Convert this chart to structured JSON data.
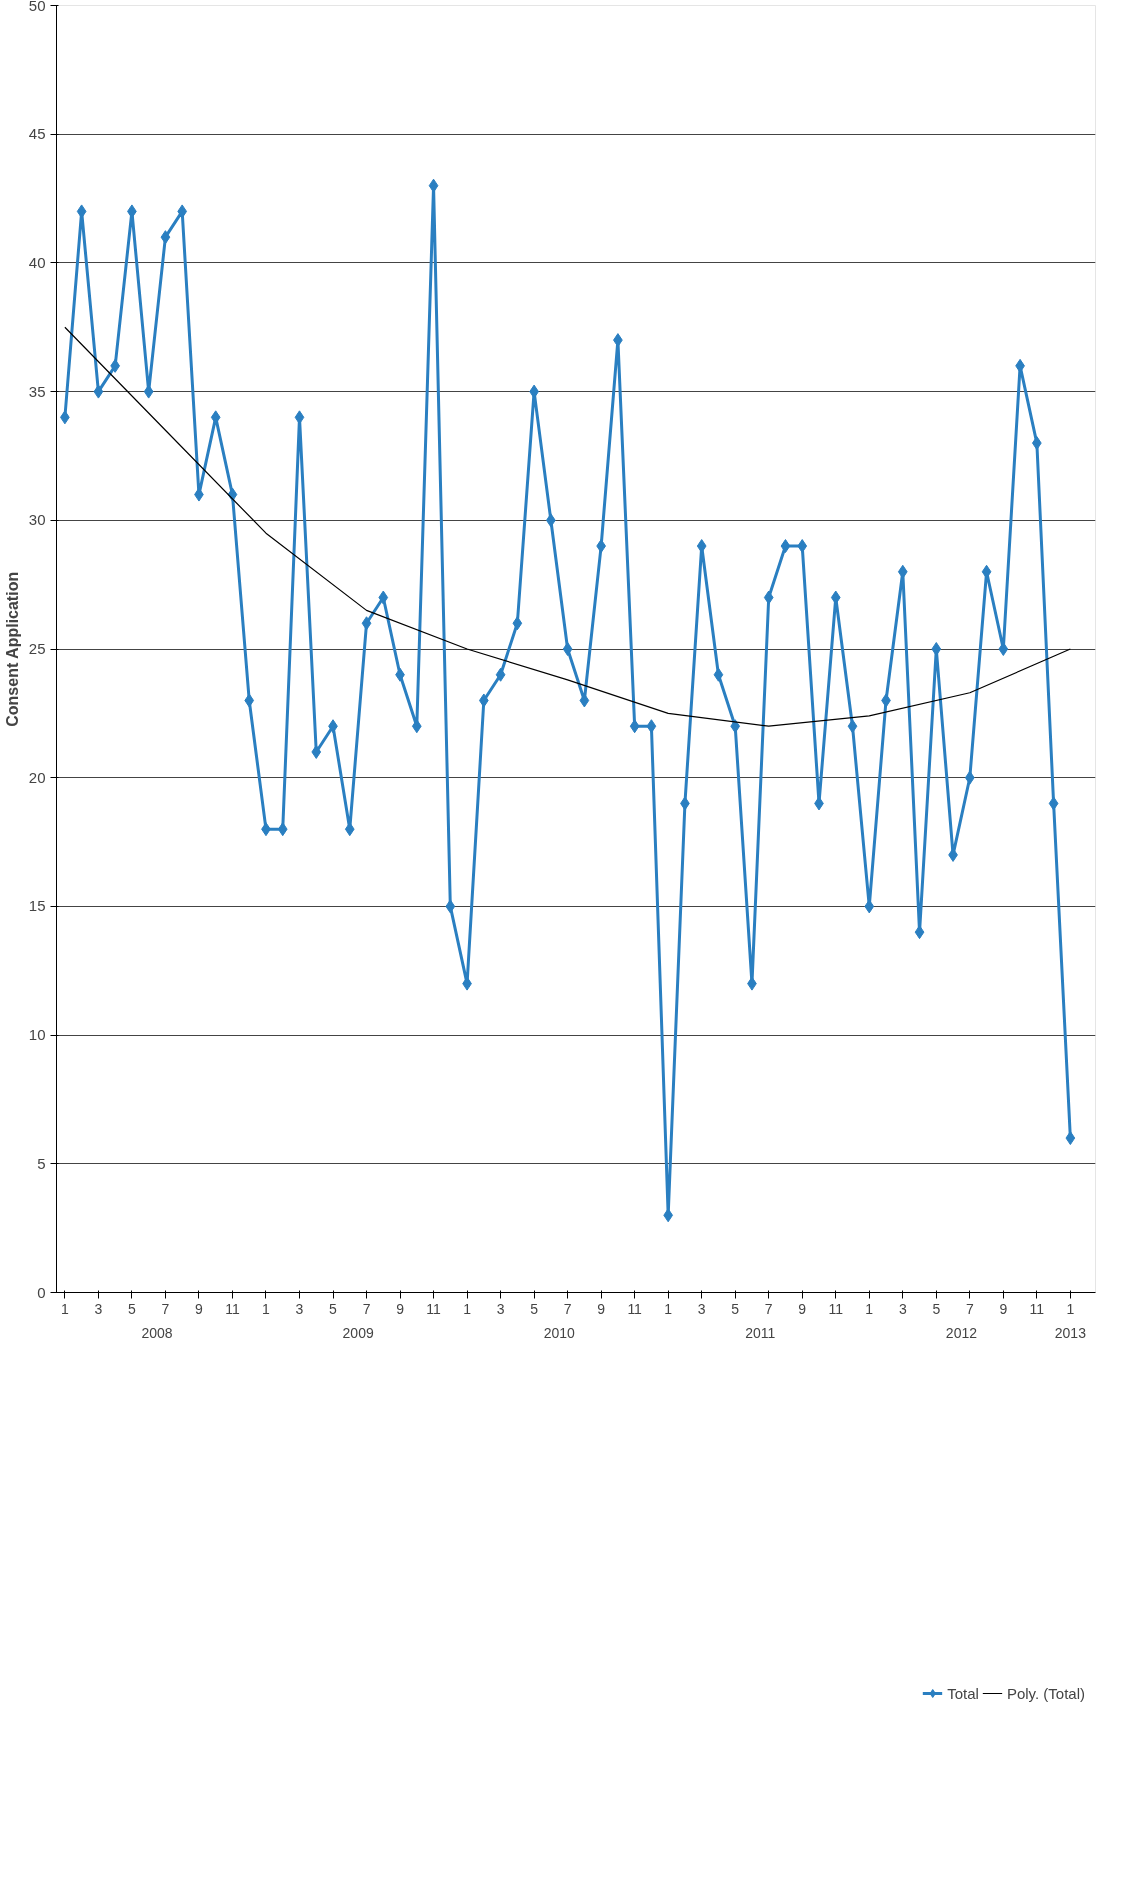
{
  "chart_data": {
    "type": "line",
    "ylabel": "Consent Application",
    "x": [
      "2008-01",
      "2008-02",
      "2008-03",
      "2008-04",
      "2008-05",
      "2008-06",
      "2008-07",
      "2008-08",
      "2008-09",
      "2008-10",
      "2008-11",
      "2008-12",
      "2009-01",
      "2009-02",
      "2009-03",
      "2009-04",
      "2009-05",
      "2009-06",
      "2009-07",
      "2009-08",
      "2009-09",
      "2009-10",
      "2009-11",
      "2009-12",
      "2010-01",
      "2010-02",
      "2010-03",
      "2010-04",
      "2010-05",
      "2010-06",
      "2010-07",
      "2010-08",
      "2010-09",
      "2010-10",
      "2010-11",
      "2010-12",
      "2011-01",
      "2011-02",
      "2011-03",
      "2011-04",
      "2011-05",
      "2011-06",
      "2011-07",
      "2011-08",
      "2011-09",
      "2011-10",
      "2011-11",
      "2011-12",
      "2012-01",
      "2012-02",
      "2012-03",
      "2012-04",
      "2012-05",
      "2012-06",
      "2012-07",
      "2012-08",
      "2012-09",
      "2012-10",
      "2012-11",
      "2012-12",
      "2013-01"
    ],
    "xticks": [
      {
        "value": "2008-01",
        "label": "1"
      },
      {
        "value": "2008-03",
        "label": "3"
      },
      {
        "value": "2008-05",
        "label": "5"
      },
      {
        "value": "2008-07",
        "label": "7"
      },
      {
        "value": "2008-09",
        "label": "9"
      },
      {
        "value": "2008-11",
        "label": "11"
      },
      {
        "value": "2009-01",
        "label": "1"
      },
      {
        "value": "2009-03",
        "label": "3"
      },
      {
        "value": "2009-05",
        "label": "5"
      },
      {
        "value": "2009-07",
        "label": "7"
      },
      {
        "value": "2009-09",
        "label": "9"
      },
      {
        "value": "2009-11",
        "label": "11"
      },
      {
        "value": "2010-01",
        "label": "1"
      },
      {
        "value": "2010-03",
        "label": "3"
      },
      {
        "value": "2010-05",
        "label": "5"
      },
      {
        "value": "2010-07",
        "label": "7"
      },
      {
        "value": "2010-09",
        "label": "9"
      },
      {
        "value": "2010-11",
        "label": "11"
      },
      {
        "value": "2011-01",
        "label": "1"
      },
      {
        "value": "2011-03",
        "label": "3"
      },
      {
        "value": "2011-05",
        "label": "5"
      },
      {
        "value": "2011-07",
        "label": "7"
      },
      {
        "value": "2011-09",
        "label": "9"
      },
      {
        "value": "2011-11",
        "label": "11"
      },
      {
        "value": "2012-01",
        "label": "1"
      },
      {
        "value": "2012-03",
        "label": "3"
      },
      {
        "value": "2012-05",
        "label": "5"
      },
      {
        "value": "2012-07",
        "label": "7"
      },
      {
        "value": "2012-09",
        "label": "9"
      },
      {
        "value": "2012-11",
        "label": "11"
      },
      {
        "value": "2013-01",
        "label": "1"
      }
    ],
    "ylim": [
      0,
      50
    ],
    "yticks": [
      0,
      5,
      10,
      15,
      20,
      25,
      30,
      35,
      40,
      45,
      50
    ],
    "grid": "y",
    "legend": "bottom",
    "annotations": [
      "2008",
      "2009",
      "2010",
      "2011",
      "2012",
      "2013"
    ],
    "xlim": [
      "2007-12-16",
      "2013-02-16"
    ],
    "series": [
      {
        "name": "Total",
        "color": "#2a7fc1",
        "marker": "diamond",
        "values": [
          34,
          42,
          35,
          36,
          42,
          35,
          41,
          42,
          31,
          34,
          31,
          23,
          18,
          18,
          34,
          21,
          22,
          18,
          26,
          27,
          24,
          22,
          43,
          15,
          12,
          23,
          24,
          26,
          35,
          30,
          25,
          23,
          29,
          37,
          22,
          22,
          3,
          19,
          29,
          24,
          22,
          12,
          27,
          29,
          29,
          19,
          27,
          22,
          15,
          23,
          28,
          14,
          25,
          17,
          20,
          28,
          25,
          36,
          33,
          19,
          6
        ]
      },
      {
        "name": "Poly. (Total)",
        "color": "#000000",
        "marker": "none",
        "x": [
          "2008-01",
          "2008-07",
          "2009-01",
          "2009-07",
          "2010-01",
          "2010-07",
          "2011-01",
          "2011-07",
          "2012-01",
          "2012-07",
          "2013-01"
        ],
        "values": [
          37.5,
          33.5,
          29.5,
          26.5,
          25,
          23.8,
          22.5,
          22,
          22.4,
          23.3,
          25
        ]
      }
    ]
  }
}
